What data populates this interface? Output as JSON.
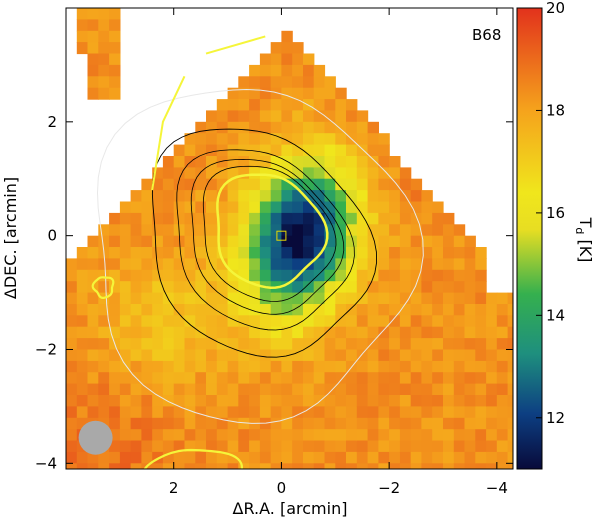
{
  "chart_data": {
    "type": "heatmap",
    "label": "B68",
    "xlabel": "ΔR.A. [arcmin]",
    "ylabel": "ΔDEC. [arcmin]",
    "xlim": [
      4.0,
      -4.3
    ],
    "ylim": [
      -4.1,
      4.0
    ],
    "xticks": [
      2,
      0,
      -2,
      -4
    ],
    "xtick_labels": [
      "2",
      "0",
      "−2",
      "−4"
    ],
    "yticks": [
      2,
      0,
      -2,
      -4
    ],
    "ytick_labels": [
      "2",
      "0",
      "−2",
      "−4"
    ],
    "colorbar": {
      "label": "T_d [K]",
      "range": [
        11,
        20
      ],
      "ticks": [
        12,
        14,
        16,
        18,
        20
      ],
      "tick_labels": [
        "12",
        "14",
        "16",
        "18",
        "20"
      ],
      "colormap": [
        "#080a3a",
        "#0d3f82",
        "#1e8f7e",
        "#35b04e",
        "#f0e61c",
        "#f5a21c",
        "#e2321c"
      ]
    },
    "core_center": [
      0,
      0
    ],
    "min_temperature_k": 11,
    "max_temperature_k": 20,
    "beam_marker": "grey-circle",
    "center_marker": "yellow-square"
  }
}
